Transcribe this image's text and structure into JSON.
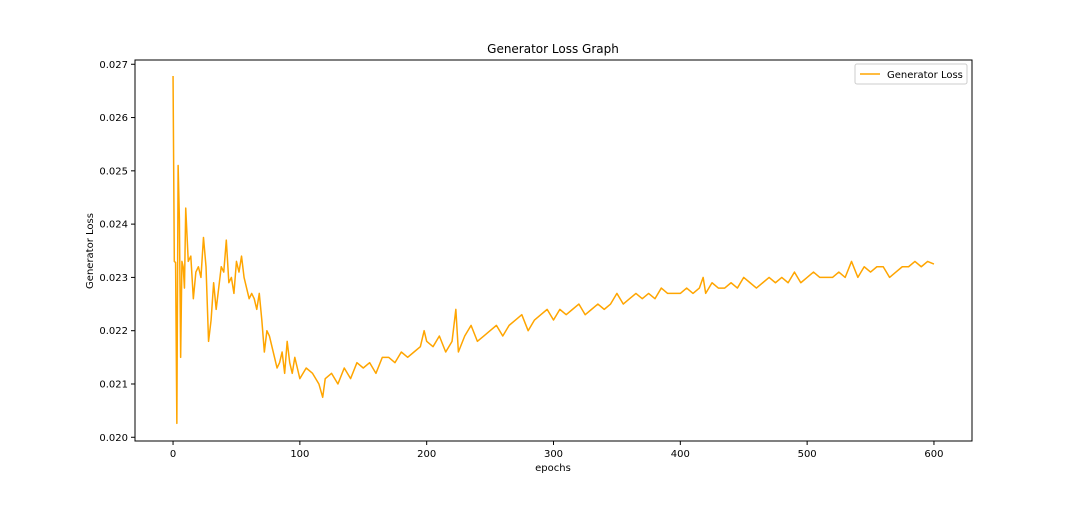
{
  "chart_data": {
    "type": "line",
    "title": "Generator Loss Graph",
    "xlabel": "epochs",
    "ylabel": "Generator Loss",
    "xlim": [
      -30,
      630
    ],
    "ylim": [
      0.01993,
      0.02708
    ],
    "xticks": [
      0,
      100,
      200,
      300,
      400,
      500,
      600
    ],
    "xtick_labels": [
      "0",
      "100",
      "200",
      "300",
      "400",
      "500",
      "600"
    ],
    "yticks": [
      0.02,
      0.021,
      0.022,
      0.023,
      0.024,
      0.025,
      0.026,
      0.027
    ],
    "ytick_labels": [
      "0.020",
      "0.021",
      "0.022",
      "0.023",
      "0.024",
      "0.025",
      "0.026",
      "0.027"
    ],
    "grid": false,
    "legend_position": "top-right",
    "series": [
      {
        "name": "Generator Loss",
        "color": "#FFA500",
        "x": [
          0,
          1,
          2,
          3,
          4,
          5,
          6,
          7,
          8,
          9,
          10,
          12,
          14,
          16,
          18,
          20,
          22,
          24,
          26,
          28,
          30,
          32,
          34,
          36,
          38,
          40,
          42,
          44,
          46,
          48,
          50,
          52,
          54,
          56,
          58,
          60,
          62,
          64,
          66,
          68,
          70,
          72,
          74,
          76,
          78,
          80,
          82,
          84,
          86,
          88,
          90,
          92,
          94,
          96,
          98,
          100,
          105,
          110,
          115,
          118,
          120,
          125,
          130,
          135,
          140,
          145,
          150,
          155,
          160,
          165,
          170,
          175,
          180,
          185,
          190,
          195,
          198,
          200,
          205,
          210,
          215,
          220,
          223,
          225,
          230,
          235,
          240,
          245,
          250,
          255,
          260,
          265,
          270,
          275,
          280,
          285,
          290,
          295,
          300,
          305,
          310,
          315,
          320,
          325,
          330,
          335,
          340,
          345,
          350,
          355,
          360,
          365,
          370,
          375,
          380,
          385,
          390,
          395,
          400,
          405,
          410,
          415,
          418,
          420,
          425,
          430,
          435,
          440,
          445,
          450,
          455,
          460,
          465,
          470,
          475,
          480,
          485,
          490,
          495,
          500,
          505,
          510,
          515,
          520,
          525,
          530,
          535,
          540,
          545,
          550,
          555,
          560,
          565,
          570,
          575,
          580,
          585,
          590,
          595,
          600
        ],
        "values": [
          0.02678,
          0.0233,
          0.02328,
          0.02026,
          0.0251,
          0.0241,
          0.0215,
          0.0233,
          0.0232,
          0.0228,
          0.0243,
          0.0233,
          0.0234,
          0.0226,
          0.0231,
          0.0232,
          0.023,
          0.02375,
          0.0232,
          0.0218,
          0.0222,
          0.0229,
          0.0224,
          0.0228,
          0.0232,
          0.0231,
          0.0237,
          0.0229,
          0.023,
          0.0227,
          0.0233,
          0.0231,
          0.0234,
          0.023,
          0.0228,
          0.0226,
          0.0227,
          0.0226,
          0.0224,
          0.0227,
          0.0222,
          0.0216,
          0.022,
          0.0219,
          0.0217,
          0.0215,
          0.0213,
          0.0214,
          0.0216,
          0.0212,
          0.0218,
          0.0214,
          0.0212,
          0.0215,
          0.0213,
          0.0211,
          0.0213,
          0.0212,
          0.021,
          0.02075,
          0.0211,
          0.0212,
          0.021,
          0.0213,
          0.0211,
          0.0214,
          0.0213,
          0.0214,
          0.0212,
          0.0215,
          0.0215,
          0.0214,
          0.0216,
          0.0215,
          0.0216,
          0.0217,
          0.022,
          0.0218,
          0.0217,
          0.0219,
          0.0216,
          0.0218,
          0.0224,
          0.0216,
          0.0219,
          0.0221,
          0.0218,
          0.0219,
          0.022,
          0.0221,
          0.0219,
          0.0221,
          0.0222,
          0.0223,
          0.022,
          0.0222,
          0.0223,
          0.0224,
          0.0222,
          0.0224,
          0.0223,
          0.0224,
          0.0225,
          0.0223,
          0.0224,
          0.0225,
          0.0224,
          0.0225,
          0.0227,
          0.0225,
          0.0226,
          0.0227,
          0.0226,
          0.0227,
          0.0226,
          0.0228,
          0.0227,
          0.0227,
          0.0227,
          0.0228,
          0.0227,
          0.0228,
          0.023,
          0.0227,
          0.0229,
          0.0228,
          0.0228,
          0.0229,
          0.0228,
          0.023,
          0.0229,
          0.0228,
          0.0229,
          0.023,
          0.0229,
          0.023,
          0.0229,
          0.0231,
          0.0229,
          0.023,
          0.0231,
          0.023,
          0.023,
          0.023,
          0.0231,
          0.023,
          0.0233,
          0.023,
          0.0232,
          0.0231,
          0.0232,
          0.0232,
          0.023,
          0.0231,
          0.0232,
          0.0232,
          0.0233,
          0.0232,
          0.0233,
          0.02325
        ]
      }
    ]
  }
}
